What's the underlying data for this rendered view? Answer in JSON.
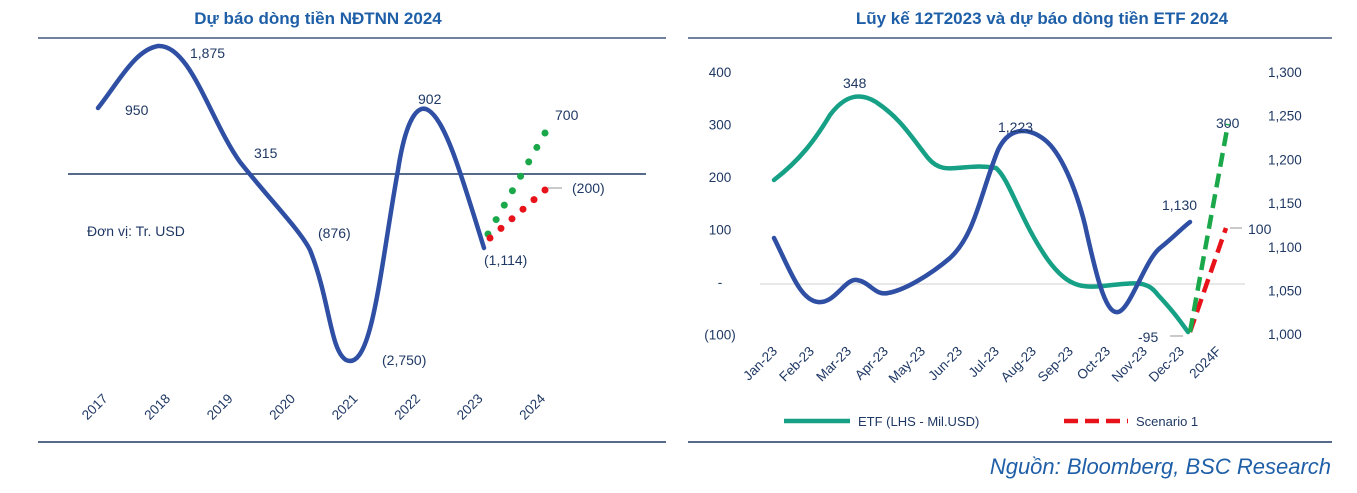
{
  "source": "Nguồn: Bloomberg, BSC Research",
  "chart_data": [
    {
      "type": "line",
      "title": "Dự báo dòng tiền NĐTNN 2024",
      "annotation": "Đơn vị: Tr. USD",
      "categories": [
        "2017",
        "2018",
        "2019",
        "2020",
        "2021",
        "2022",
        "2023",
        "2024"
      ],
      "series": [
        {
          "values": [
            950,
            1875,
            315,
            -876,
            -2750,
            902,
            -1114,
            null
          ]
        },
        {
          "values": [
            null,
            null,
            null,
            null,
            null,
            null,
            -1114,
            700
          ]
        },
        {
          "values": [
            null,
            null,
            null,
            null,
            null,
            null,
            -1114,
            -200
          ]
        }
      ],
      "data_labels": [
        "950",
        "1,875",
        "315",
        "(876)",
        "(2,750)",
        "902",
        "(1,114)",
        "700",
        "(200)"
      ],
      "colors": {
        "actual": "#2e4fa3",
        "bull": "#1aa84a",
        "bear": "#e8121b"
      }
    },
    {
      "type": "line",
      "title": "Lũy kế 12T2023 và dự báo dòng tiền ETF 2024",
      "categories": [
        "Jan-23",
        "Feb-23",
        "Mar-23",
        "Apr-23",
        "May-23",
        "Jun-23",
        "Jul-23",
        "Aug-23",
        "Sep-23",
        "Oct-23",
        "Nov-23",
        "Dec-23",
        "2024F"
      ],
      "y_left": {
        "ticks": [
          "400",
          "300",
          "200",
          "100",
          "-",
          "(100)"
        ],
        "range": [
          -100,
          400
        ]
      },
      "y_right": {
        "ticks": [
          "1,300",
          "1,250",
          "1,200",
          "1,150",
          "1,100",
          "1,050",
          "1,000"
        ],
        "range": [
          1000,
          1300
        ]
      },
      "series": [
        {
          "name": "ETF (LHS - Mil.USD)",
          "axis": "left",
          "color": "#16a085",
          "values": [
            200,
            265,
            348,
            305,
            225,
            225,
            225,
            90,
            0,
            0,
            0,
            -95,
            null
          ]
        },
        {
          "axis": "right",
          "color": "#2e4fa3",
          "values": [
            1110,
            1040,
            1060,
            1050,
            1075,
            1120,
            1210,
            1223,
            1160,
            1040,
            1080,
            1130,
            null
          ]
        },
        {
          "name": "Scenario 1",
          "axis": "left",
          "color": "#e8121b",
          "dash": true,
          "values": [
            null,
            null,
            null,
            null,
            null,
            null,
            null,
            null,
            null,
            null,
            null,
            -95,
            100
          ]
        },
        {
          "axis": "left",
          "color": "#1aa84a",
          "dash": true,
          "values": [
            null,
            null,
            null,
            null,
            null,
            null,
            null,
            null,
            null,
            null,
            null,
            -95,
            300
          ]
        }
      ],
      "data_labels": [
        "348",
        "1,223",
        "1,130",
        "-95",
        "300",
        "100"
      ]
    }
  ]
}
